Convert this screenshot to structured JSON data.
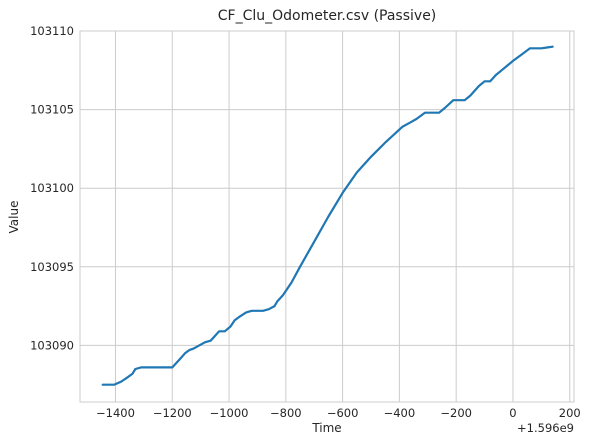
{
  "chart_data": {
    "type": "line",
    "title": "CF_Clu_Odometer.csv (Passive)",
    "xlabel": "Time",
    "ylabel": "Value",
    "x_offset_label": "+1.596e9",
    "xlim": [
      -1525,
      215
    ],
    "ylim": [
      103086.4,
      103110
    ],
    "x_ticks": [
      -1400,
      -1200,
      -1000,
      -800,
      -600,
      -400,
      -200,
      0,
      200
    ],
    "x_tick_labels": [
      "−1400",
      "−1200",
      "−1000",
      "−800",
      "−600",
      "−400",
      "−200",
      "0",
      "200"
    ],
    "y_ticks": [
      103090,
      103095,
      103100,
      103105,
      103110
    ],
    "y_tick_labels": [
      "103090",
      "103095",
      "103100",
      "103105",
      "103110"
    ],
    "grid": true,
    "line_color": "#1f77b4",
    "series": [
      {
        "x": [
          -1445,
          -1405,
          -1380,
          -1355,
          -1340,
          -1330,
          -1310,
          -1290,
          -1255,
          -1225,
          -1200,
          -1175,
          -1155,
          -1140,
          -1125,
          -1105,
          -1085,
          -1065,
          -1050,
          -1035,
          -1015,
          -995,
          -980,
          -965,
          -940,
          -920,
          -900,
          -880,
          -860,
          -840,
          -830,
          -810,
          -780,
          -750,
          -700,
          -650,
          -600,
          -550,
          -500,
          -450,
          -420,
          -390,
          -360,
          -340,
          -310,
          -280,
          -260,
          -240,
          -210,
          -190,
          -170,
          -150,
          -120,
          -100,
          -80,
          -60,
          -40,
          -20,
          0,
          30,
          60,
          80,
          100,
          120,
          140
        ],
        "y": [
          103087.5,
          103087.5,
          103087.7,
          103088.0,
          103088.2,
          103088.5,
          103088.6,
          103088.6,
          103088.6,
          103088.6,
          103088.6,
          103089.1,
          103089.5,
          103089.7,
          103089.8,
          103090.0,
          103090.2,
          103090.3,
          103090.6,
          103090.9,
          103090.9,
          103091.2,
          103091.6,
          103091.8,
          103092.1,
          103092.2,
          103092.2,
          103092.2,
          103092.3,
          103092.5,
          103092.8,
          103093.2,
          103094.0,
          103095.0,
          103096.6,
          103098.2,
          103099.7,
          103101.0,
          103102.0,
          103102.9,
          103103.4,
          103103.9,
          103104.2,
          103104.4,
          103104.8,
          103104.8,
          103104.8,
          103105.1,
          103105.6,
          103105.6,
          103105.6,
          103105.9,
          103106.5,
          103106.8,
          103106.8,
          103107.2,
          103107.5,
          103107.8,
          103108.1,
          103108.5,
          103108.9,
          103108.9,
          103108.9,
          103108.95,
          103109.0
        ]
      }
    ]
  }
}
